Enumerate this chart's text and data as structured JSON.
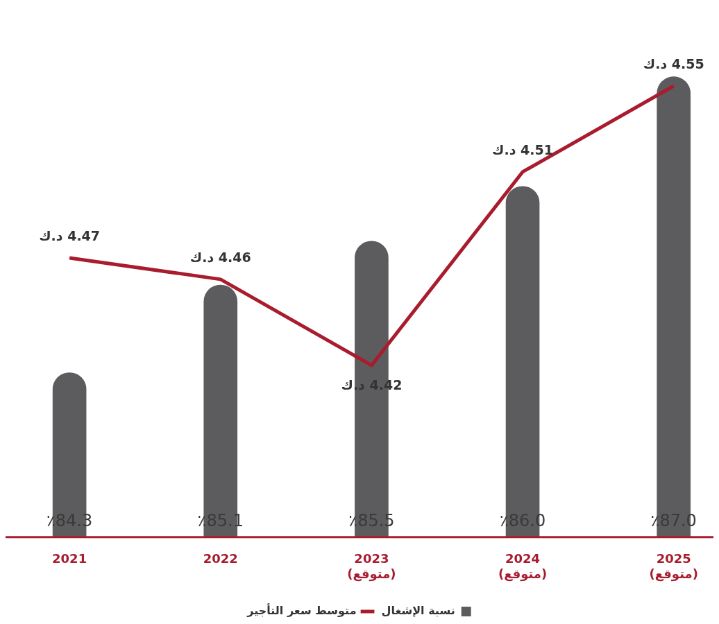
{
  "chart_data": {
    "type": "bar",
    "categories": [
      "2021",
      "2022",
      "2023\n(متوقع)",
      "2024\n(متوقع)",
      "2025\n(متوقع)"
    ],
    "series": [
      {
        "name": "نسبة الإشغال",
        "color": "#5c5c5e",
        "values": [
          84.3,
          85.1,
          85.5,
          86.0,
          87.0
        ],
        "value_labels": [
          "٪84.3",
          "٪85.1",
          "٪85.5",
          "٪86.0",
          "٪87.0"
        ]
      },
      {
        "name": "متوسط سعر التأجير",
        "type": "line",
        "axis": "y2",
        "color": "#a81c2e",
        "values": [
          4.47,
          4.46,
          4.42,
          4.51,
          4.55
        ],
        "value_labels": [
          "4.47 د.ك",
          "4.46 د.ك",
          "4.42 د.ك",
          "4.51 د.ك",
          "4.55 د.ك"
        ]
      }
    ],
    "ylim": [
      82.8,
      87.7
    ],
    "y2lim": [
      4.34,
      4.59
    ],
    "tick_labels": "x",
    "legend": "bottom",
    "marker": "none",
    "line_style": "solid"
  }
}
